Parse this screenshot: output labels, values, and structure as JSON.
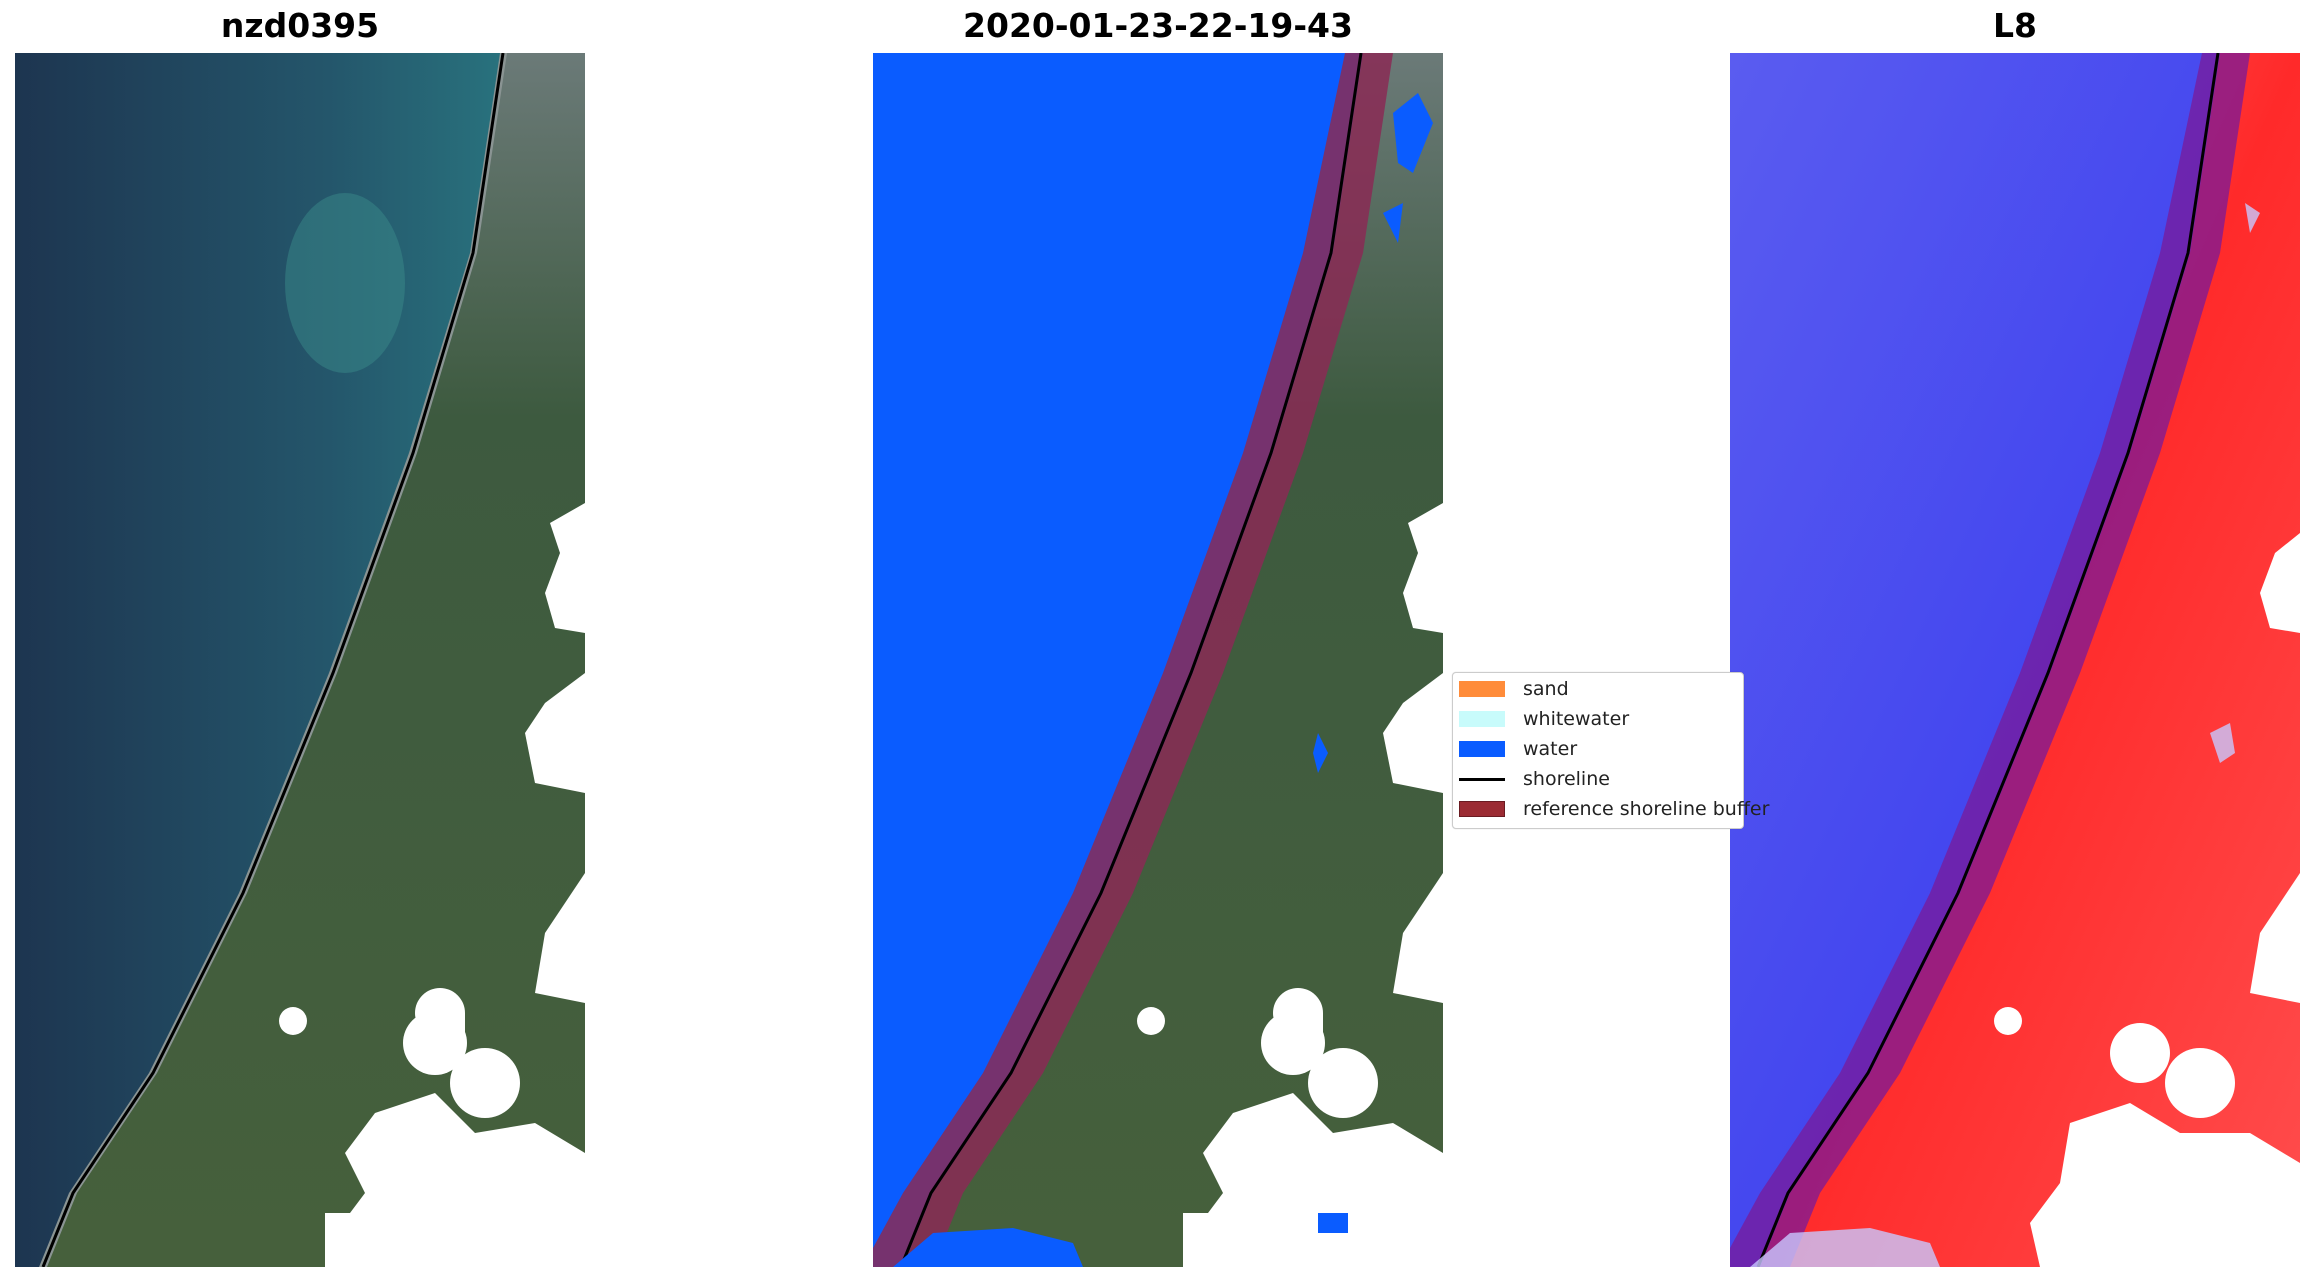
{
  "panels": [
    {
      "title": "nzd0395"
    },
    {
      "title": "2020-01-23-22-19-43"
    },
    {
      "title": "L8"
    }
  ],
  "legend": {
    "items": [
      {
        "label": "sand",
        "color": "#ff8c3a"
      },
      {
        "label": "whitewater",
        "color": "#c8fbfb"
      },
      {
        "label": "water",
        "color": "#0a5cff"
      },
      {
        "label": "shoreline",
        "color": "#000000"
      },
      {
        "label": "reference shoreline buffer",
        "color": "#9b2b33"
      }
    ]
  },
  "colors": {
    "ocean_rgb": "#1f4a5e",
    "land_rgb": "#3b5238",
    "water_class": "#0a5cff",
    "buffer": "#8a2a55",
    "mndwi_water": "#3a3ff5",
    "mndwi_land": "#ff2a2a",
    "cloud_mask": "#ffffff"
  }
}
